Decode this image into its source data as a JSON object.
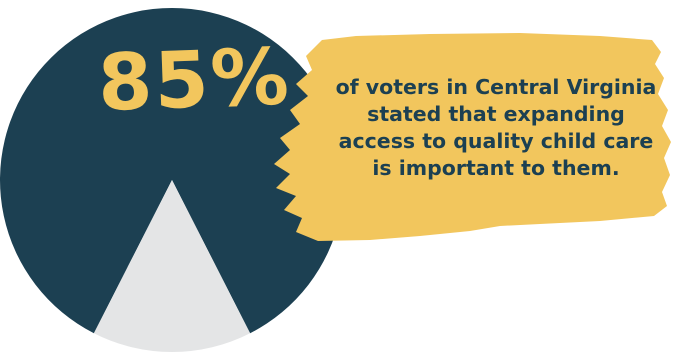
{
  "chart_data": {
    "type": "pie",
    "values": [
      85,
      15
    ],
    "highlight_label": "85%",
    "caption_lines": [
      "of voters in Central Virginia",
      "stated that expanding",
      "access to quality child care",
      "is important to them."
    ]
  },
  "colors": {
    "pie_main": "#1c4052",
    "pie_remainder": "#e4e5e6",
    "accent": "#f2c65d",
    "caption_text": "#1c4052"
  }
}
